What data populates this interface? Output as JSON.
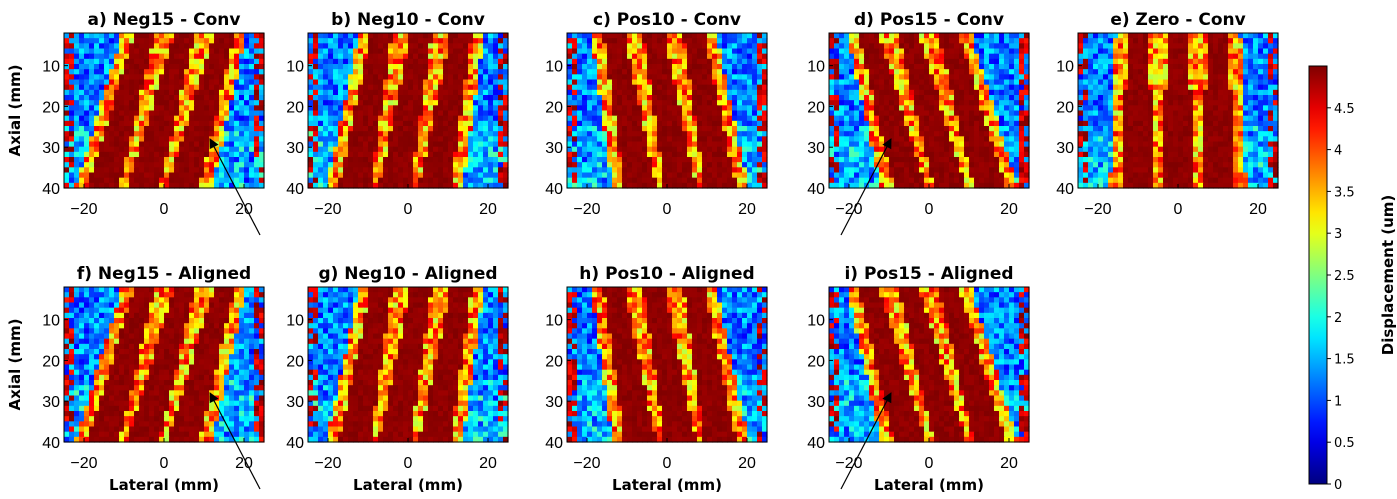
{
  "chart_data": {
    "type": "heatmap",
    "panels": [
      {
        "title": "a) Neg15 - Conv",
        "angle_deg": -15,
        "arrow": true
      },
      {
        "title": "b) Neg10 - Conv",
        "angle_deg": -10,
        "arrow": false
      },
      {
        "title": "c) Pos10 - Conv",
        "angle_deg": 10,
        "arrow": false
      },
      {
        "title": "d) Pos15 - Conv",
        "angle_deg": 15,
        "arrow": true
      },
      {
        "title": "e) Zero - Conv",
        "angle_deg": 0,
        "arrow": false
      },
      {
        "title": "f) Neg15 - Aligned",
        "angle_deg": -15,
        "arrow": true
      },
      {
        "title": "g) Neg10 - Aligned",
        "angle_deg": -10,
        "arrow": false
      },
      {
        "title": "h) Pos10 - Aligned",
        "angle_deg": 10,
        "arrow": false
      },
      {
        "title": "i) Pos15 - Aligned",
        "angle_deg": 15,
        "arrow": true
      }
    ],
    "xlabel": "Lateral (mm)",
    "ylabel": "Axial (mm)",
    "xlim": [
      -25,
      25
    ],
    "ylim": [
      2,
      40
    ],
    "x_ticks": [
      -20,
      0,
      20
    ],
    "y_ticks": [
      10,
      20,
      30,
      40
    ],
    "stripe_centers_mm": [
      -10,
      0,
      10
    ],
    "colorbar": {
      "label": "Displacement (um)",
      "min": 0,
      "max": 5,
      "ticks": [
        0,
        0.5,
        1,
        1.5,
        2,
        2.5,
        3,
        3.5,
        4,
        4.5
      ],
      "colormap": "jet"
    }
  }
}
